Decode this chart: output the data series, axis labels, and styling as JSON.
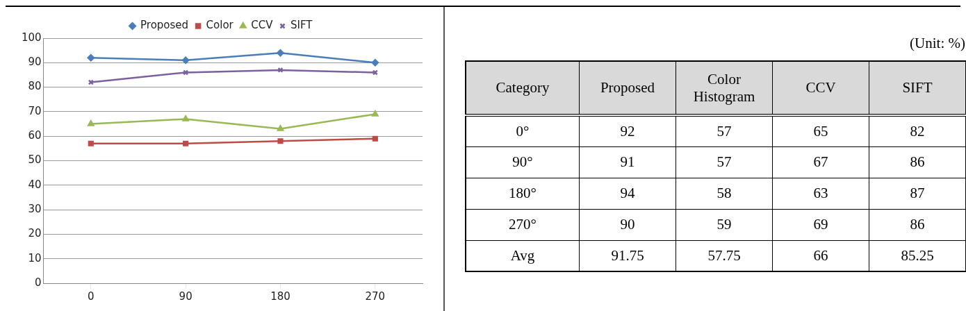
{
  "chart_data": [
    {
      "type": "line",
      "categories": [
        "0",
        "90",
        "180",
        "270"
      ],
      "series": [
        {
          "name": "Proposed",
          "color": "#4a7ebb",
          "marker": "diamond",
          "values": [
            92,
            91,
            94,
            90
          ]
        },
        {
          "name": "Color",
          "color": "#be4b48",
          "marker": "square",
          "values": [
            57,
            57,
            58,
            59
          ]
        },
        {
          "name": "CCV",
          "color": "#98b954",
          "marker": "triangle",
          "values": [
            65,
            67,
            63,
            69
          ]
        },
        {
          "name": "SIFT",
          "color": "#7d60a0",
          "marker": "cross",
          "values": [
            82,
            86,
            87,
            86
          ]
        }
      ],
      "ylim": [
        0,
        100
      ],
      "yticks": [
        0,
        10,
        20,
        30,
        40,
        50,
        60,
        70,
        80,
        90,
        100
      ],
      "grid": "y",
      "legend": "top"
    },
    {
      "type": "heatmap",
      "data_labels": true,
      "annotations": [
        "(Unit: %)"
      ],
      "ylabel": "Category",
      "categories": [
        "Proposed",
        "Color Histogram",
        "CCV",
        "SIFT"
      ],
      "y_categories": [
        "0°",
        "90°",
        "180°",
        "270°",
        "Avg"
      ],
      "cells": [
        [
          92,
          57,
          65,
          82
        ],
        [
          91,
          57,
          67,
          86
        ],
        [
          94,
          58,
          63,
          87
        ],
        [
          90,
          59,
          69,
          86
        ],
        [
          91.75,
          57.75,
          66,
          85.25
        ]
      ]
    }
  ]
}
